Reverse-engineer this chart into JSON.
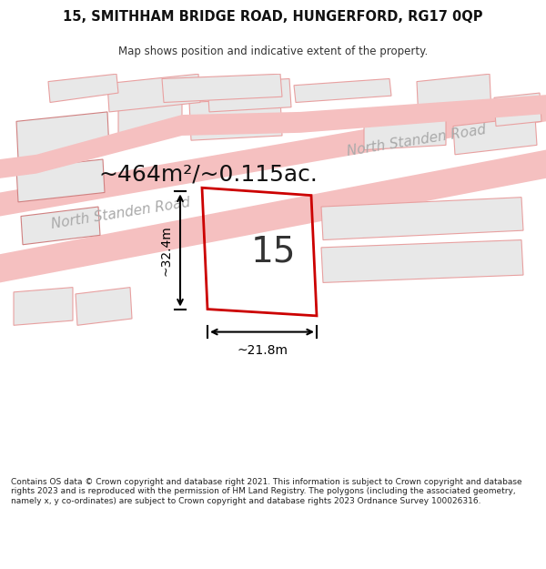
{
  "title_line1": "15, SMITHHAM BRIDGE ROAD, HUNGERFORD, RG17 0QP",
  "title_line2": "Map shows position and indicative extent of the property.",
  "area_text": "~464m²/~0.115ac.",
  "road_label": "North Standen Road",
  "number_label": "15",
  "dim_width": "~21.8m",
  "dim_height": "~32.4m",
  "footer_text": "Contains OS data © Crown copyright and database right 2021. This information is subject to Crown copyright and database rights 2023 and is reproduced with the permission of HM Land Registry. The polygons (including the associated geometry, namely x, y co-ordinates) are subject to Crown copyright and database rights 2023 Ordnance Survey 100026316.",
  "bg_color": "#ffffff",
  "map_bg": "#ffffff",
  "road_color": "#f5c0c0",
  "road_border": "#e8a0a0",
  "plot_outline_color": "#cc0000",
  "dim_line_color": "#000000",
  "building_fill": "#e8e8e8",
  "building_stroke": "#d08080",
  "road_fill": "#f0d0d0",
  "text_color": "#333333",
  "road_label_color": "#999999"
}
